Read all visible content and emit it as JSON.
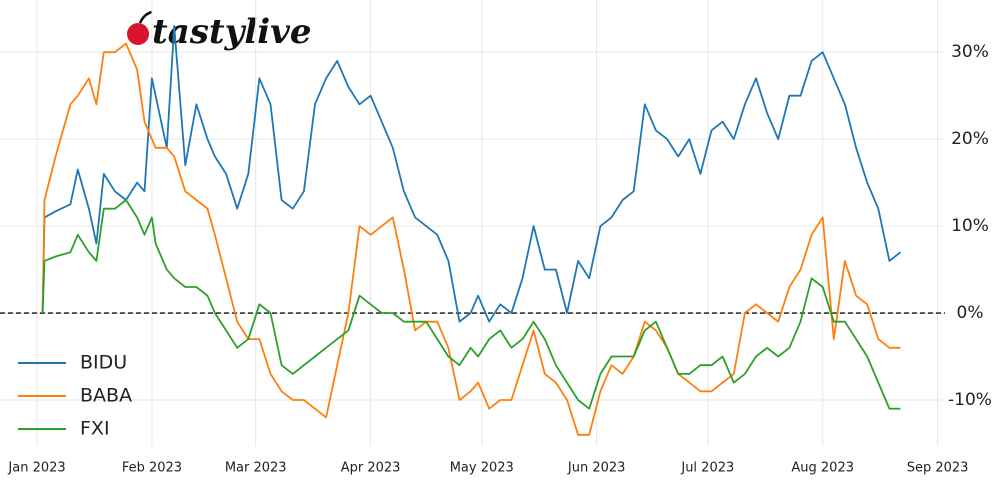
{
  "logo": "tastylive",
  "chart_data": {
    "type": "line",
    "x": [
      1.5,
      2,
      5,
      9,
      11,
      14,
      16,
      18,
      21,
      24,
      27,
      29,
      31,
      32,
      35,
      37,
      40,
      43,
      46,
      48,
      51,
      54,
      57,
      60,
      63,
      66,
      69,
      72,
      75,
      78,
      81,
      84,
      87,
      90,
      93,
      96,
      99,
      102,
      105,
      108,
      111,
      114,
      117,
      119,
      122,
      125,
      128,
      131,
      134,
      137,
      140,
      143,
      146,
      149,
      152,
      155,
      158,
      161,
      164,
      167,
      170,
      173,
      176,
      179,
      182,
      185,
      188,
      191,
      194,
      197,
      200,
      203,
      206,
      209,
      212,
      215,
      218,
      221,
      224,
      227,
      230,
      233
    ],
    "series": [
      {
        "name": "BIDU",
        "color": "#1f77b4",
        "values": [
          0,
          11,
          11.7,
          12.5,
          16.5,
          12,
          8,
          16,
          14,
          13,
          15,
          14,
          27,
          25,
          19,
          33,
          17,
          24,
          20,
          18,
          16,
          12,
          16,
          27,
          24,
          13,
          12,
          14,
          24,
          27,
          29,
          26,
          24,
          25,
          22,
          19,
          14,
          11,
          10,
          9,
          6,
          -1,
          0,
          2,
          -1,
          1,
          0,
          4,
          10,
          5,
          5,
          0,
          6,
          4,
          10,
          11,
          13,
          14,
          24,
          21,
          20,
          18,
          20,
          16,
          21,
          22,
          20,
          24,
          27,
          23,
          20,
          25,
          25,
          29,
          30,
          27,
          24,
          19,
          15,
          12,
          6,
          7
        ]
      },
      {
        "name": "BABA",
        "color": "#ff7f0e",
        "values": [
          0,
          13,
          18,
          24,
          25,
          27,
          24,
          30,
          30,
          31,
          28,
          22,
          20,
          19,
          19,
          18,
          14,
          13,
          12,
          9,
          4,
          -1,
          -3,
          -3,
          -7,
          -9,
          -10,
          -10,
          -11,
          -12,
          -6,
          0,
          10,
          9,
          10,
          11,
          5,
          -2,
          -1,
          -1,
          -4,
          -10,
          -9,
          -8,
          -11,
          -10,
          -10,
          -6,
          -2,
          -7,
          -8,
          -10,
          -14,
          -14,
          -9,
          -6,
          -7,
          -5,
          -1,
          -2,
          -4,
          -7,
          -8,
          -9,
          -9,
          -8,
          -7,
          0,
          1,
          0,
          -1,
          3,
          5,
          9,
          11,
          -3,
          6,
          2,
          1,
          -3,
          -4,
          -4
        ]
      },
      {
        "name": "FXI",
        "color": "#2ca02c",
        "values": [
          0,
          6,
          6.5,
          7,
          9,
          7,
          6,
          12,
          12,
          13,
          11,
          9,
          11,
          8,
          5,
          4,
          3,
          3,
          2,
          0,
          -2,
          -4,
          -3,
          1,
          0,
          -6,
          -7,
          -6,
          -5,
          -4,
          -3,
          -2,
          2,
          1,
          0,
          0,
          -1,
          -1,
          -1,
          -3,
          -5,
          -6,
          -4,
          -5,
          -3,
          -2,
          -4,
          -3,
          -1,
          -3,
          -6,
          -8,
          -10,
          -11,
          -7,
          -5,
          -5,
          -5,
          -2,
          -1,
          -4,
          -7,
          -7,
          -6,
          -6,
          -5,
          -8,
          -7,
          -5,
          -4,
          -5,
          -4,
          -1,
          4,
          3,
          -1,
          -1,
          -3,
          -5,
          -8,
          -11,
          -11
        ]
      }
    ],
    "xlim": [
      -10,
      245
    ],
    "xticks": [
      {
        "value": 0,
        "label": "Jan 2023"
      },
      {
        "value": 31,
        "label": "Feb 2023"
      },
      {
        "value": 59,
        "label": "Mar 2023"
      },
      {
        "value": 90,
        "label": "Apr 2023"
      },
      {
        "value": 120,
        "label": "May 2023"
      },
      {
        "value": 151,
        "label": "Jun 2023"
      },
      {
        "value": 181,
        "label": "Jul 2023"
      },
      {
        "value": 212,
        "label": "Aug 2023"
      },
      {
        "value": 243,
        "label": "Sep 2023"
      }
    ],
    "ylim": [
      -14.6,
      36
    ],
    "yticks": [
      {
        "value": -10,
        "label": "-10%"
      },
      {
        "value": 0,
        "label": "0%"
      },
      {
        "value": 10,
        "label": "10%"
      },
      {
        "value": 20,
        "label": "20%"
      },
      {
        "value": 30,
        "label": "30%"
      }
    ],
    "grid": true,
    "zero_line": true,
    "legend": "lower left"
  }
}
